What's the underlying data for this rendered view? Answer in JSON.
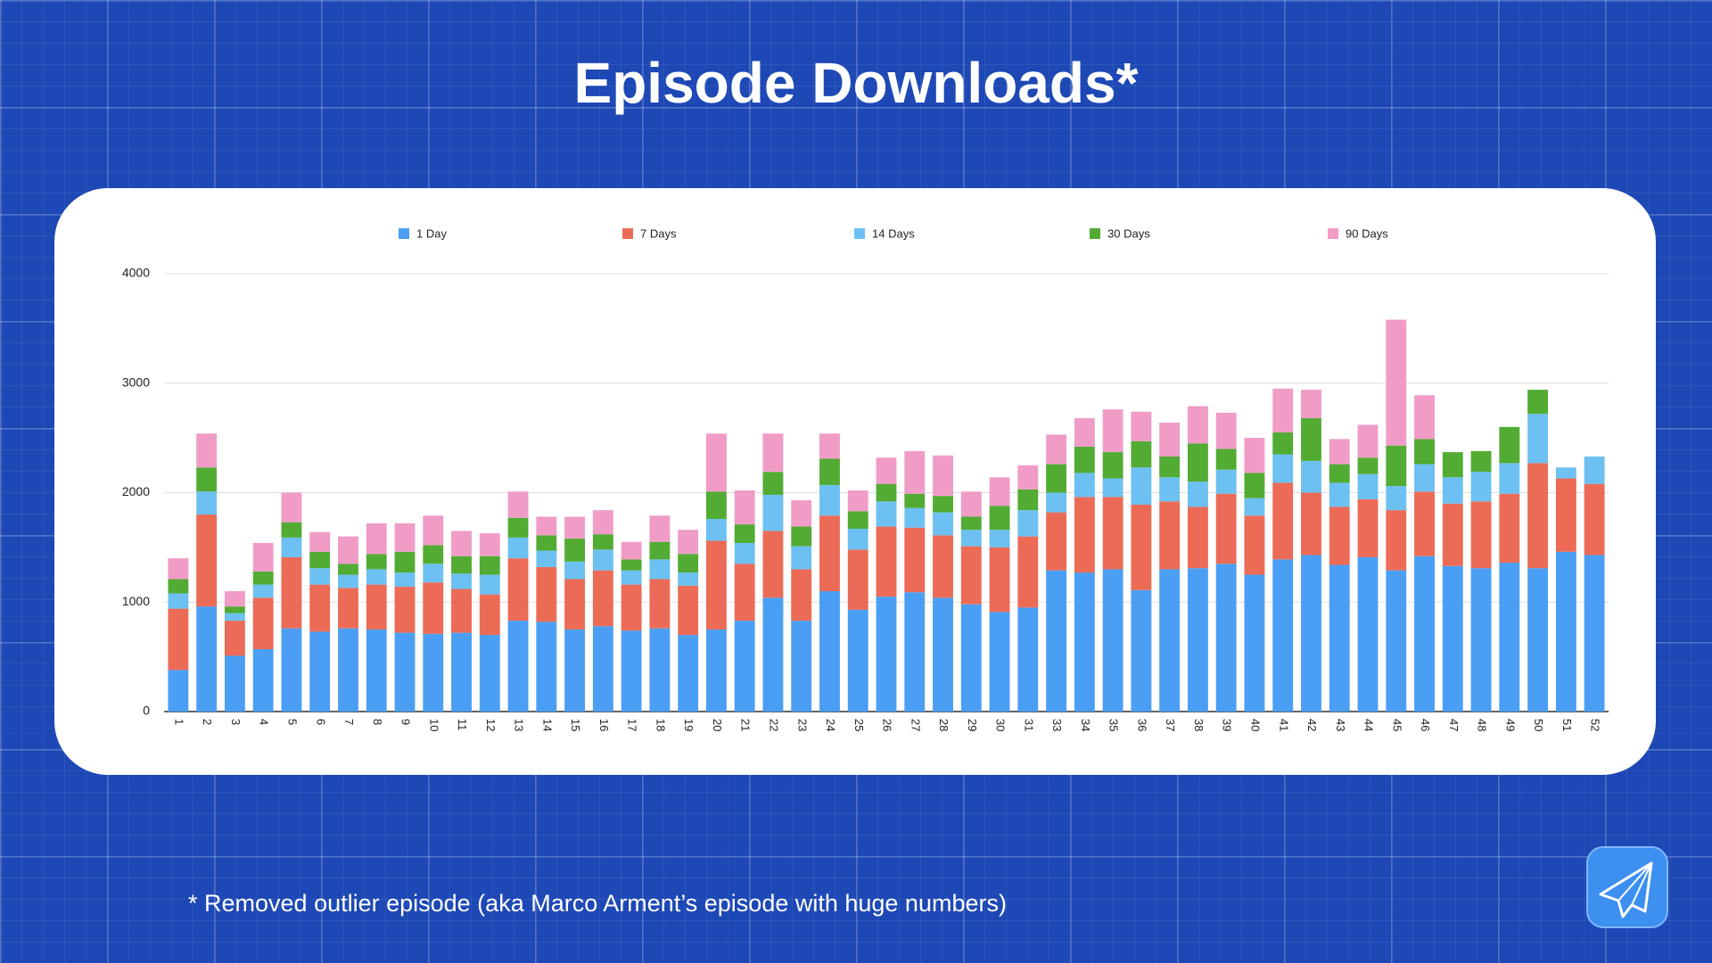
{
  "chart_data": {
    "type": "stacked_bar",
    "title": "Episode Downloads*",
    "footnote": "* Removed outlier episode (aka Marco Arment’s episode with huge numbers)",
    "categories": [
      "1",
      "2",
      "3",
      "4",
      "5",
      "6",
      "7",
      "8",
      "9",
      "10",
      "11",
      "12",
      "13",
      "14",
      "15",
      "16",
      "17",
      "18",
      "19",
      "20",
      "21",
      "22",
      "23",
      "24",
      "25",
      "26",
      "27",
      "28",
      "29",
      "30",
      "31",
      "33",
      "34",
      "35",
      "36",
      "37",
      "38",
      "39",
      "40",
      "41",
      "42",
      "43",
      "44",
      "45",
      "46",
      "47",
      "48",
      "49",
      "50",
      "51",
      "52"
    ],
    "series": [
      {
        "name": "1 Day",
        "color": "#4a9ff5",
        "values": [
          380,
          960,
          510,
          570,
          760,
          730,
          760,
          750,
          720,
          710,
          720,
          700,
          830,
          820,
          750,
          780,
          740,
          760,
          700,
          750,
          830,
          1040,
          830,
          1100,
          930,
          1050,
          1090,
          1040,
          980,
          910,
          950,
          1290,
          1270,
          1300,
          1110,
          1300,
          1310,
          1350,
          1250,
          1390,
          1430,
          1340,
          1410,
          1290,
          1420,
          1330,
          1310,
          1360,
          1310,
          1460,
          1430
        ]
      },
      {
        "name": "7 Days",
        "color": "#ec6b56",
        "values": [
          560,
          840,
          320,
          470,
          650,
          430,
          370,
          410,
          420,
          470,
          400,
          370,
          570,
          500,
          460,
          510,
          420,
          450,
          450,
          810,
          520,
          610,
          470,
          690,
          550,
          640,
          590,
          570,
          530,
          590,
          650,
          530,
          690,
          660,
          780,
          620,
          560,
          640,
          540,
          700,
          570,
          530,
          530,
          550,
          590,
          570,
          610,
          630,
          960,
          670,
          650
        ]
      },
      {
        "name": "14 Days",
        "color": "#6cc1f2",
        "values": [
          140,
          210,
          70,
          120,
          180,
          150,
          120,
          140,
          130,
          170,
          140,
          180,
          190,
          150,
          160,
          190,
          130,
          180,
          120,
          200,
          190,
          330,
          210,
          280,
          190,
          230,
          180,
          210,
          150,
          160,
          240,
          180,
          220,
          170,
          340,
          220,
          230,
          220,
          160,
          260,
          290,
          220,
          230,
          220,
          250,
          240,
          270,
          280,
          450,
          100,
          250
        ]
      },
      {
        "name": "30 Days",
        "color": "#52ab33",
        "values": [
          130,
          220,
          60,
          120,
          140,
          150,
          100,
          140,
          190,
          170,
          160,
          170,
          180,
          140,
          210,
          140,
          100,
          160,
          170,
          250,
          170,
          210,
          180,
          240,
          160,
          160,
          130,
          150,
          120,
          220,
          190,
          260,
          240,
          240,
          240,
          190,
          350,
          190,
          230,
          200,
          390,
          170,
          150,
          370,
          230,
          230,
          190,
          330,
          220,
          null,
          null
        ]
      },
      {
        "name": "90 Days",
        "color": "#f09cc7",
        "values": [
          190,
          310,
          140,
          260,
          270,
          180,
          250,
          280,
          260,
          270,
          230,
          210,
          240,
          170,
          200,
          220,
          160,
          240,
          220,
          530,
          310,
          350,
          240,
          230,
          190,
          240,
          390,
          370,
          230,
          260,
          220,
          270,
          260,
          390,
          270,
          310,
          340,
          330,
          320,
          400,
          260,
          230,
          300,
          1150,
          400,
          null,
          null,
          null,
          null,
          null,
          null
        ]
      }
    ],
    "ylim": [
      0,
      4000
    ],
    "yticks": [
      0,
      1000,
      2000,
      3000,
      4000
    ],
    "grid": true
  }
}
